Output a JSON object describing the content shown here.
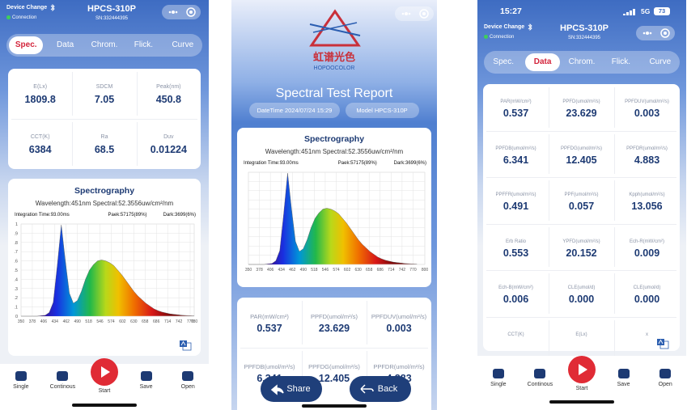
{
  "screens": [
    {
      "header": {
        "device_change": "Device Change",
        "connection": "Connection",
        "model": "HPCS-310P",
        "serial": "SN:332444395"
      },
      "tabs": [
        "Spec.",
        "Data",
        "Chrom.",
        "Flick.",
        "Curve"
      ],
      "active_tab": 0,
      "metrics": [
        {
          "label": "E(Lx)",
          "value": "1809.8"
        },
        {
          "label": "SDCM",
          "value": "7.05"
        },
        {
          "label": "Peak(nm)",
          "value": "450.8"
        },
        {
          "label": "CCT(K)",
          "value": "6384"
        },
        {
          "label": "Ra",
          "value": "68.5"
        },
        {
          "label": "Duv",
          "value": "0.01224"
        }
      ],
      "spectrography": {
        "title": "Spectrography",
        "wavelength": "Wavelength:451nm Spectral:52.3556uw/cm²/nm",
        "integration": "Integration Time:93.00ms",
        "peak": "Paek:57175(89%)",
        "dark": "Dark:3699(6%)",
        "xlim": [
          350,
          780
        ],
        "xticks": [
          350,
          378,
          406,
          434,
          462,
          490,
          518,
          546,
          574,
          602,
          630,
          658,
          686,
          714,
          742,
          770,
          780
        ],
        "ylim": [
          0,
          1
        ],
        "yticks": [
          0,
          {
            "value": 0.1,
            "label": ".1"
          },
          {
            "value": 0.2,
            "label": ".2"
          },
          {
            "value": 0.3,
            "label": ".3"
          },
          {
            "value": 0.4,
            "label": ".4"
          },
          {
            "value": 0.5,
            "label": ".5"
          },
          {
            "value": 0.6,
            "label": ".6"
          },
          {
            "value": 0.7,
            "label": ".7"
          },
          {
            "value": 0.8,
            "label": ".8"
          },
          {
            "value": 0.9,
            "label": ".9"
          },
          1
        ]
      },
      "nav": [
        "Single",
        "Continous",
        "Start",
        "Save",
        "Open"
      ]
    },
    {
      "logo": {
        "cn": "虹谱光色",
        "en": "HOPOOCOLOR"
      },
      "title": "Spectral Test Report",
      "datetime": "DateTime 2024/07/24 15:29",
      "model": "Model HPCS-310P",
      "spectrography": {
        "title": "Spectrography",
        "wavelength": "Wavelength:451nm Spectral:52.3556uw/cm²/nm",
        "integration": "Integration Time:93.00ms",
        "peak": "Paek:57175(89%)",
        "dark": "Dark:3699(6%)",
        "xlim": [
          350,
          800
        ],
        "xticks": [
          350,
          378,
          406,
          434,
          462,
          490,
          518,
          546,
          574,
          602,
          630,
          658,
          686,
          714,
          742,
          770,
          800
        ],
        "ylim": [
          0,
          1
        ],
        "yticks": [
          0,
          0.1,
          0.2,
          0.3,
          0.4,
          0.5,
          0.6,
          0.7,
          0.8,
          0.9,
          1
        ]
      },
      "metrics": [
        {
          "label": "PAR(mW/cm²)",
          "value": "0.537"
        },
        {
          "label": "PPFD(umol/m²/s)",
          "value": "23.629"
        },
        {
          "label": "PPFDUV(umol/m²/s)",
          "value": "0.003"
        },
        {
          "label": "PPFDB(umol/m²/s)",
          "value": "6.341"
        },
        {
          "label": "PPFDG(umol/m²/s)",
          "value": "12.405"
        },
        {
          "label": "PPFDR(umol/m²/s)",
          "value": "4.883"
        }
      ],
      "buttons": [
        "Share",
        "Back"
      ]
    },
    {
      "status": {
        "time": "15:27",
        "network": "5G",
        "battery": "73"
      },
      "header": {
        "device_change": "Device Change",
        "connection": "Connection",
        "model": "HPCS-310P",
        "serial": "SN:332444395"
      },
      "tabs": [
        "Spec.",
        "Data",
        "Chrom.",
        "Flick.",
        "Curve"
      ],
      "active_tab": 1,
      "metrics": [
        {
          "label": "PAR(mW/cm²)",
          "value": "0.537"
        },
        {
          "label": "PPFD(umol/m²/s)",
          "value": "23.629"
        },
        {
          "label": "PPFDUV(umol/m²/s)",
          "value": "0.003"
        },
        {
          "label": "PPFDB(umol/m²/s)",
          "value": "6.341"
        },
        {
          "label": "PPFDG(umol/m²/s)",
          "value": "12.405"
        },
        {
          "label": "PPFDR(umol/m²/s)",
          "value": "4.883"
        },
        {
          "label": "PPFFR(umol/m²/s)",
          "value": "0.491"
        },
        {
          "label": "PPF(umol/m²/s)",
          "value": "0.057"
        },
        {
          "label": "Kpph(umol/m²/s)",
          "value": "13.056"
        },
        {
          "label": "Erb Ratio",
          "value": "0.553"
        },
        {
          "label": "YPFD(umol/m²/s)",
          "value": "20.152"
        },
        {
          "label": "Ech-R(mW/cm²)",
          "value": "0.009"
        },
        {
          "label": "Ech-B(mW/cm²)",
          "value": "0.006"
        },
        {
          "label": "CLE(umol/d)",
          "value": "0.000"
        },
        {
          "label": "CLE(umol/d)",
          "value": "0.000"
        },
        {
          "label": "CCT(K)"
        },
        {
          "label": "E(Lx)"
        },
        {
          "label": "x"
        }
      ],
      "nav": [
        "Single",
        "Continous",
        "Start",
        "Save",
        "Open"
      ]
    }
  ],
  "spectrum": {
    "x": [
      350,
      360,
      370,
      380,
      390,
      400,
      410,
      420,
      430,
      440,
      450,
      460,
      470,
      480,
      490,
      500,
      510,
      520,
      530,
      540,
      550,
      560,
      570,
      580,
      590,
      600,
      610,
      620,
      630,
      640,
      650,
      660,
      670,
      680,
      690,
      700,
      710,
      720,
      730,
      740,
      750,
      760,
      770,
      780
    ],
    "values": [
      0,
      0,
      0,
      0,
      0,
      0.005,
      0.01,
      0.04,
      0.15,
      0.55,
      0.99,
      0.6,
      0.25,
      0.14,
      0.17,
      0.27,
      0.4,
      0.5,
      0.56,
      0.6,
      0.61,
      0.6,
      0.58,
      0.55,
      0.5,
      0.45,
      0.39,
      0.33,
      0.27,
      0.22,
      0.18,
      0.14,
      0.11,
      0.08,
      0.06,
      0.045,
      0.035,
      0.025,
      0.02,
      0.015,
      0.01,
      0.008,
      0.005,
      0.003
    ]
  }
}
